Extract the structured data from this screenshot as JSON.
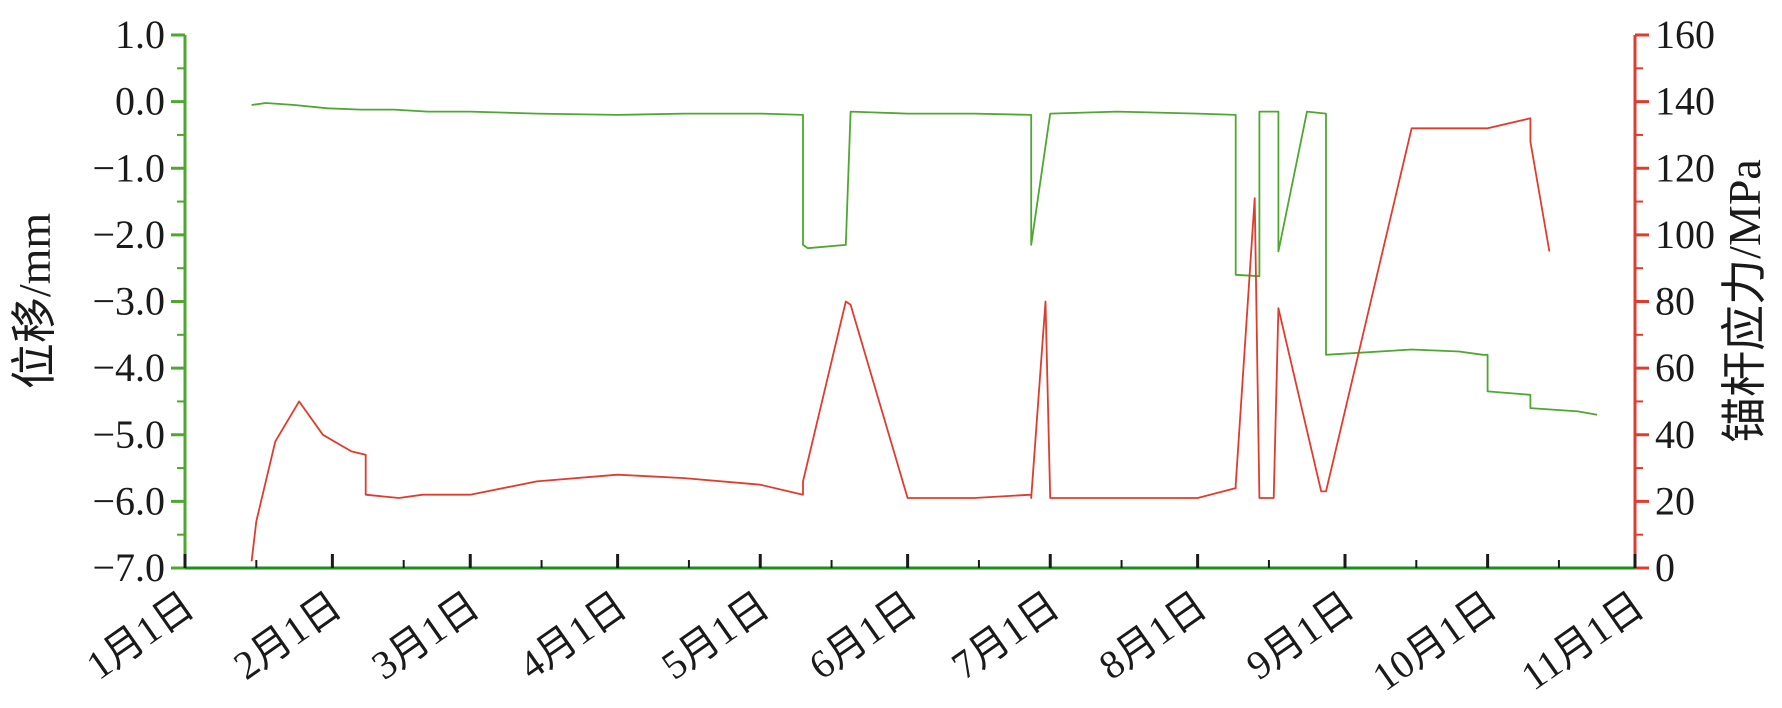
{
  "chart_data": {
    "type": "line",
    "x_tick_labels": [
      "1月1日",
      "2月1日",
      "3月1日",
      "4月1日",
      "5月1日",
      "6月1日",
      "7月1日",
      "8月1日",
      "9月1日",
      "10月1日",
      "11月1日"
    ],
    "left_axis": {
      "label": "位移/mm",
      "ylim": [
        -7.0,
        1.0
      ],
      "tick_labels": [
        "1.0",
        "0.0",
        "−1.0",
        "−2.0",
        "−3.0",
        "−4.0",
        "−5.0",
        "−6.0",
        "−7.0"
      ],
      "color": "#4ea72e"
    },
    "right_axis": {
      "label": "锚杆应力/MPa",
      "ylim": [
        0,
        160
      ],
      "tick_labels": [
        "160",
        "140",
        "120",
        "100",
        "80",
        "60",
        "40",
        "20",
        "0"
      ],
      "color": "#e03c2d"
    },
    "series": [
      {
        "axis": "left",
        "color": "#4ea72e",
        "x": [
          "01-15",
          "01-18",
          "01-24",
          "01-31",
          "02-07",
          "02-14",
          "02-21",
          "03-01",
          "03-15",
          "04-01",
          "04-15",
          "05-01",
          "05-10",
          "05-10",
          "05-11",
          "05-19",
          "05-20",
          "06-01",
          "06-15",
          "06-27",
          "06-27",
          "07-01",
          "07-15",
          "08-01",
          "08-09",
          "08-09",
          "08-14",
          "08-14",
          "08-18",
          "08-18",
          "08-24",
          "08-24",
          "08-28",
          "08-28",
          "09-15",
          "09-25",
          "09-30",
          "10-01",
          "10-01",
          "10-10",
          "10-10",
          "10-20",
          "10-24"
        ],
        "y": [
          -0.05,
          -0.02,
          -0.05,
          -0.1,
          -0.12,
          -0.12,
          -0.15,
          -0.15,
          -0.18,
          -0.2,
          -0.18,
          -0.18,
          -0.2,
          -2.15,
          -2.2,
          -2.15,
          -0.15,
          -0.18,
          -0.18,
          -0.2,
          -2.15,
          -0.18,
          -0.15,
          -0.18,
          -0.2,
          -2.6,
          -2.62,
          -0.15,
          -0.15,
          -2.25,
          -0.15,
          -0.15,
          -0.18,
          -3.8,
          -3.72,
          -3.75,
          -3.8,
          -3.8,
          -4.35,
          -4.4,
          -4.6,
          -4.65,
          -4.7
        ]
      },
      {
        "axis": "right",
        "color": "#e03c2d",
        "x": [
          "01-15",
          "01-16",
          "01-20",
          "01-25",
          "01-30",
          "02-05",
          "02-08",
          "02-08",
          "02-15",
          "02-20",
          "03-01",
          "03-15",
          "04-01",
          "04-15",
          "05-01",
          "05-10",
          "05-10",
          "05-19",
          "05-20",
          "06-01",
          "06-15",
          "06-27",
          "06-27",
          "06-30",
          "07-01",
          "07-15",
          "08-01",
          "08-09",
          "08-09",
          "08-13",
          "08-14",
          "08-17",
          "08-18",
          "08-27",
          "08-28",
          "09-15",
          "10-01",
          "10-10",
          "10-10",
          "10-14"
        ],
        "y": [
          2,
          14,
          38,
          50,
          40,
          35,
          34,
          22,
          21,
          22,
          22,
          26,
          28,
          27,
          25,
          22,
          26,
          80,
          79,
          21,
          21,
          22,
          21,
          80,
          21,
          21,
          21,
          24,
          25,
          111,
          21,
          21,
          78,
          23,
          23,
          132,
          132,
          135,
          128,
          95
        ]
      }
    ]
  }
}
